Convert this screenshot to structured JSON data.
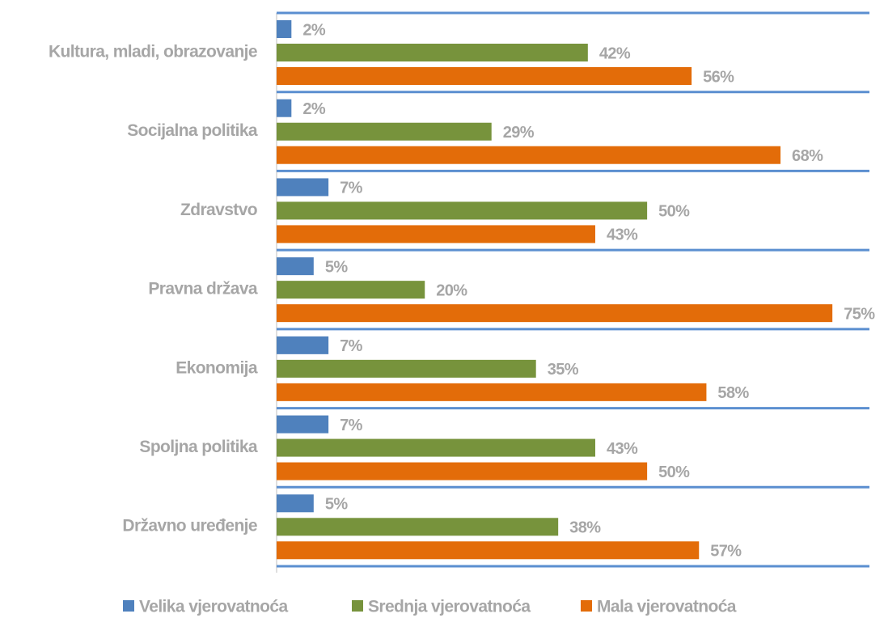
{
  "chart_data": {
    "type": "hbar",
    "categories": [
      "Kultura, mladi, obrazovanje",
      "Socijalna politika",
      "Zdravstvo",
      "Pravna država",
      "Ekonomija",
      "Spoljna politika",
      "Državno uređenje"
    ],
    "series": [
      {
        "name": "Velika vjerovatnoća",
        "color": "#4f81bd",
        "values": [
          2,
          2,
          7,
          5,
          7,
          7,
          5
        ],
        "value_labels": [
          "2%",
          "2%",
          "7%",
          "5%",
          "7%",
          "7%",
          "5%"
        ]
      },
      {
        "name": "Srednja vjerovatnoća",
        "color": "#77933c",
        "values": [
          42,
          29,
          50,
          20,
          35,
          43,
          38
        ],
        "value_labels": [
          "42%",
          "29%",
          "50%",
          "20%",
          "35%",
          "43%",
          "38%"
        ]
      },
      {
        "name": "Mala vjerovatnoća",
        "color": "#e36c09",
        "values": [
          56,
          68,
          43,
          75,
          58,
          50,
          57
        ],
        "value_labels": [
          "56%",
          "68%",
          "43%",
          "75%",
          "58%",
          "50%",
          "57%"
        ]
      }
    ],
    "xlim": [
      0,
      80
    ],
    "legend": "bottom"
  }
}
